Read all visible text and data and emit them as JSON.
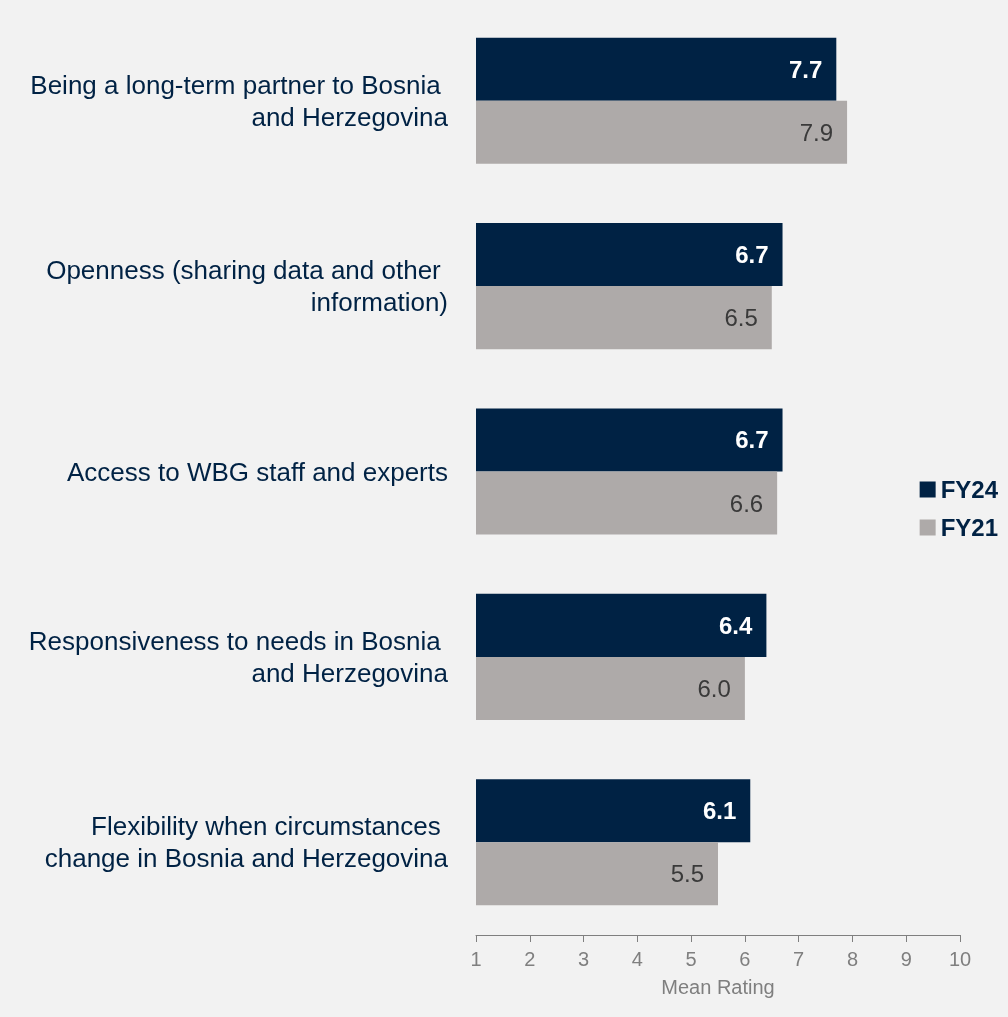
{
  "chart_data": {
    "type": "bar",
    "orientation": "horizontal",
    "xlabel": "Mean Rating",
    "categories": [
      "Being a long-term partner to Bosnia and Herzegovina",
      "Openness (sharing data and other information)",
      "Access to WBG staff and experts",
      "Responsiveness to needs in Bosnia and Herzegovina",
      "Flexibility when circumstances change in Bosnia and Herzegovina"
    ],
    "series": [
      {
        "name": "FY24",
        "color": "#002244",
        "values": [
          7.7,
          6.7,
          6.7,
          6.4,
          6.1
        ],
        "value_labels": [
          "7.7",
          "6.7",
          "6.7",
          "6.4",
          "6.1"
        ]
      },
      {
        "name": "FY21",
        "color": "#aeaaa9",
        "values": [
          7.9,
          6.5,
          6.6,
          6.0,
          5.5
        ],
        "value_labels": [
          "7.9",
          "6.5",
          "6.6",
          "6.0",
          "5.5"
        ]
      }
    ],
    "xlim": [
      1,
      10
    ],
    "xticks": [
      1,
      2,
      3,
      4,
      5,
      6,
      7,
      8,
      9,
      10
    ],
    "legend": "right",
    "grid": false
  }
}
